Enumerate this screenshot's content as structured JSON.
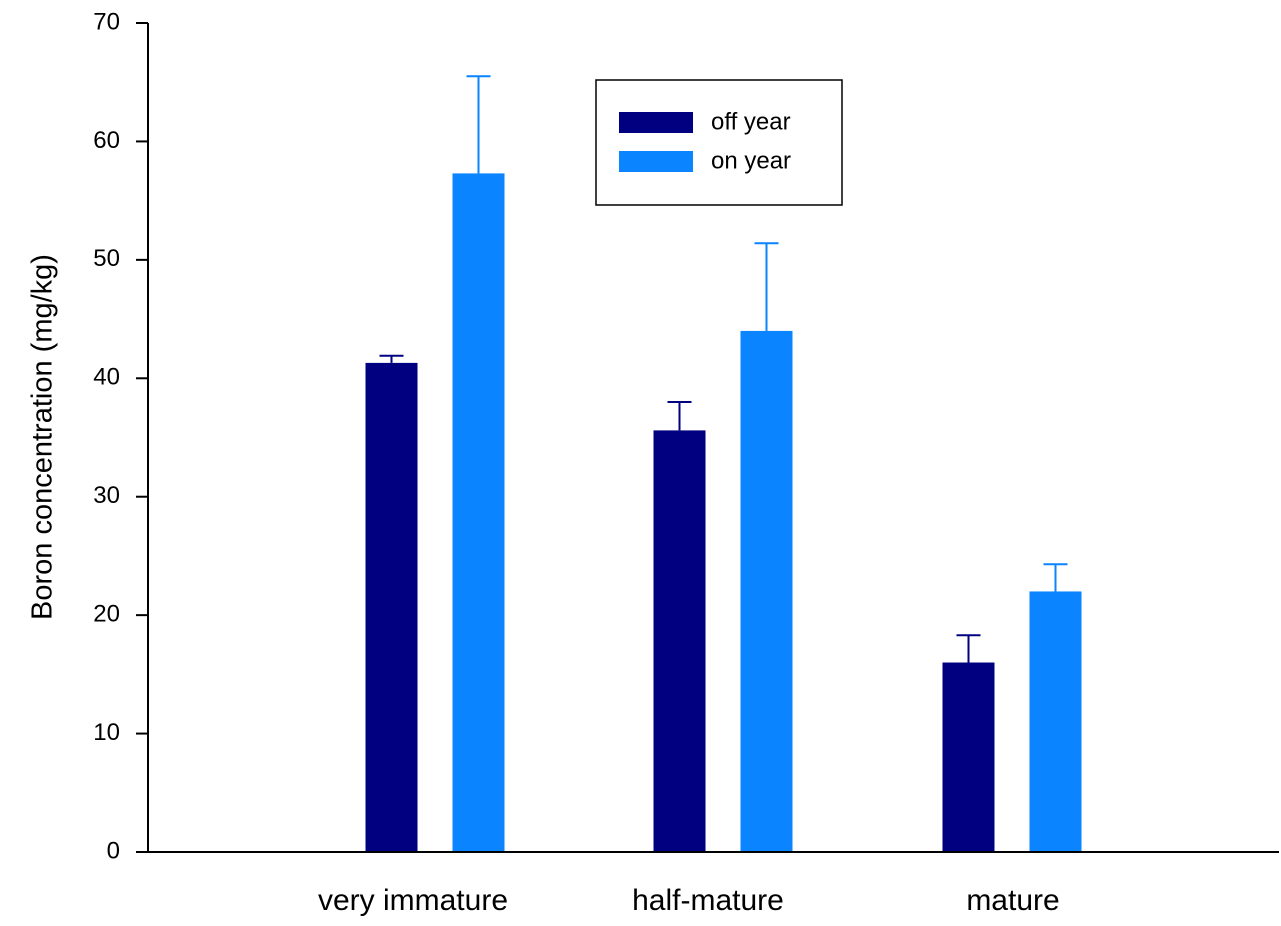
{
  "chart_data": {
    "type": "bar",
    "title": "",
    "xlabel": "",
    "ylabel": "Boron concentration (mg/kg)",
    "ylim": [
      0,
      70
    ],
    "yticks": [
      "0",
      "10",
      "20",
      "30",
      "40",
      "50",
      "60",
      "70"
    ],
    "categories": [
      "very immature",
      "half-mature",
      "mature"
    ],
    "series": [
      {
        "name": "off year",
        "color": "#000080",
        "values": [
          41.3,
          35.6,
          16.0
        ],
        "error": [
          0.6,
          2.4,
          2.3
        ]
      },
      {
        "name": "on year",
        "color": "#0a84ff",
        "values": [
          57.3,
          44.0,
          22.0
        ],
        "error": [
          8.2,
          7.4,
          2.3
        ]
      }
    ],
    "error_bars": "upper",
    "grid": false,
    "legend": {
      "position": "top-center"
    }
  }
}
